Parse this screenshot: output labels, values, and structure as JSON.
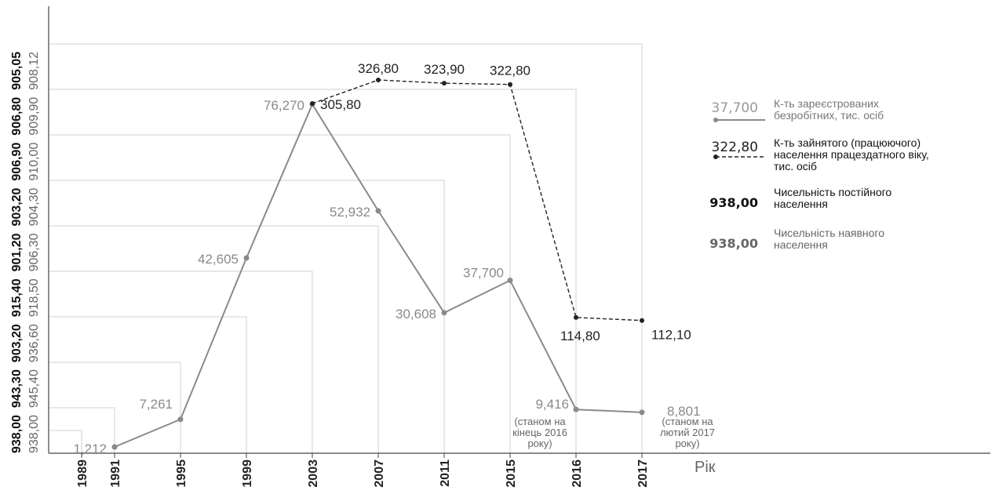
{
  "chart_data": {
    "type": "line",
    "x_axis_label": "Рік",
    "years": [
      "1989",
      "1991",
      "1995",
      "1999",
      "2003",
      "2007",
      "2011",
      "2015",
      "2016",
      "2017"
    ],
    "permanent_population_labels": [
      "938,00",
      "943,30",
      "903,20",
      "915,40",
      "901,20",
      "903,20",
      "906,90",
      "906,80",
      "905,05"
    ],
    "present_population_labels": [
      "938,00",
      "945,40",
      "936,60",
      "918,50",
      "906,30",
      "904,30",
      "910,00",
      "909,90",
      "908,12"
    ],
    "series": [
      {
        "name": "К-ть зареєстрованих безробітних, тис. осіб",
        "color": "#8a8a8a",
        "points": [
          {
            "x": "1991",
            "y": 1.212,
            "label": "1,212"
          },
          {
            "x": "1995",
            "y": 7.261,
            "label": "7,261"
          },
          {
            "x": "1999",
            "y": 42.605,
            "label": "42,605"
          },
          {
            "x": "2003",
            "y": 76.27,
            "label": "76,270"
          },
          {
            "x": "2007",
            "y": 52.932,
            "label": "52,932"
          },
          {
            "x": "2011",
            "y": 30.608,
            "label": "30,608"
          },
          {
            "x": "2015",
            "y": 37.7,
            "label": "37,700"
          },
          {
            "x": "2016",
            "y": 9.416,
            "label": "9,416"
          },
          {
            "x": "2017",
            "y": 8.801,
            "label": "8,801"
          }
        ]
      },
      {
        "name": "К-ть зайнятого (працюючого) населення працездатного віку, тис. осіб",
        "color": "#222222",
        "points": [
          {
            "x": "2003",
            "y": 305.8,
            "label": "305,80"
          },
          {
            "x": "2007",
            "y": 326.8,
            "label": "326,80"
          },
          {
            "x": "2011",
            "y": 323.9,
            "label": "323,90"
          },
          {
            "x": "2015",
            "y": 322.8,
            "label": "322,80"
          },
          {
            "x": "2016",
            "y": 114.8,
            "label": "114,80"
          },
          {
            "x": "2017",
            "y": 112.1,
            "label": "112,10"
          }
        ]
      }
    ],
    "annotations": [
      {
        "x": "2016",
        "lines": [
          "(станом на",
          "кінець 2016",
          "року)"
        ]
      },
      {
        "x": "2017",
        "lines": [
          "(станом на",
          "лютий 2017",
          "року)"
        ]
      }
    ],
    "legend": [
      {
        "value": "37,700",
        "lines": [
          "К-ть зареєстрованих",
          "безробітних, тис. осіб"
        ],
        "style": "solid",
        "color": "#8a8a8a"
      },
      {
        "value": "322,80",
        "lines": [
          "К-ть зайнятого (працюючого)",
          "населення працездатного віку,",
          "тис. осіб"
        ],
        "style": "dashed",
        "color": "#222222"
      },
      {
        "value": "938,00",
        "lines": [
          "Чисельність постійного",
          "населення"
        ],
        "style": "bold",
        "color": "#111111"
      },
      {
        "value": "938,00",
        "lines": [
          "Чисельність наявного",
          "населення"
        ],
        "style": "bold-grey",
        "color": "#666666"
      }
    ]
  }
}
